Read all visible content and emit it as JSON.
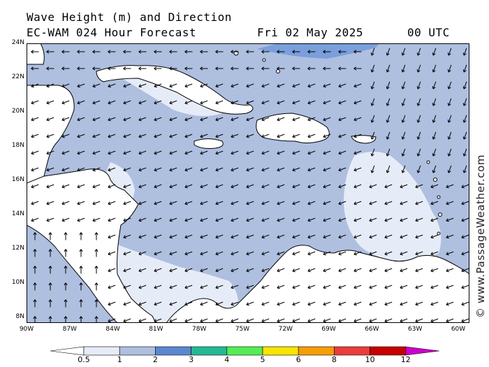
{
  "header": {
    "title_line1": "Wave Height (m) and Direction",
    "title_line2": "EC-WAM 024 Hour Forecast",
    "date": "Fri 02 May 2025",
    "time": "00 UTC"
  },
  "credit": "© www.PassageWeather.com",
  "axes": {
    "lat_labels": [
      "24N",
      "22N",
      "20N",
      "18N",
      "16N",
      "14N",
      "12N",
      "10N",
      "8N"
    ],
    "lon_labels": [
      "90W",
      "87W",
      "84W",
      "81W",
      "78W",
      "75W",
      "72W",
      "69W",
      "66W",
      "63W",
      "60W"
    ]
  },
  "legend": {
    "labels": [
      "0.5",
      "1",
      "2",
      "3",
      "4",
      "5",
      "6",
      "8",
      "10",
      "12"
    ],
    "colors": [
      "#e6ecf7",
      "#aebfe0",
      "#5b87d2",
      "#22ba93",
      "#55ed55",
      "#f7e400",
      "#f79d06",
      "#ed3c3c",
      "#c70000",
      "#cc00cc"
    ]
  },
  "colors": {
    "land": "#ffffff",
    "sea_calm": "#e6ecf7",
    "sea_main": "#aebfe0",
    "sea_high": "#7a9fdb",
    "pacific": "#aebfe0",
    "arrow": "#000000"
  }
}
